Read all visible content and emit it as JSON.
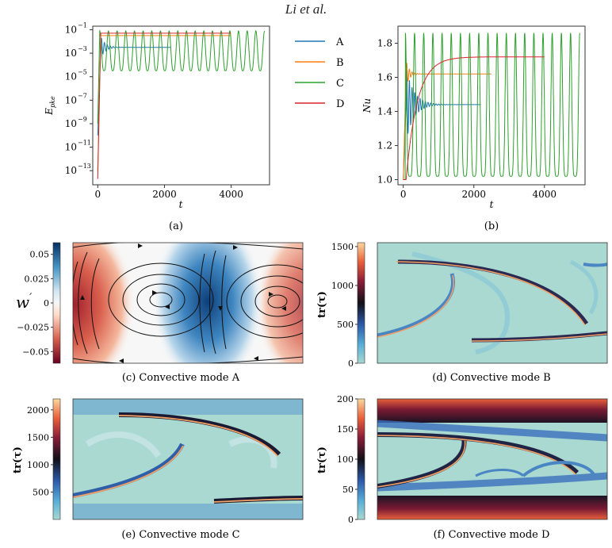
{
  "header": {
    "author_line": "Li et al."
  },
  "colors": {
    "A": "#1f77b4",
    "B": "#ff7f0e",
    "C": "#2ca02c",
    "D": "#d62728"
  },
  "legend": {
    "entries": [
      "A",
      "B",
      "C",
      "D"
    ]
  },
  "panel_captions": {
    "a": "(a)",
    "b": "(b)",
    "c": "(c) Convective mode A",
    "d": "(d) Convective mode B",
    "e": "(e) Convective mode C",
    "f": "(f) Convective mode D"
  },
  "chart_data": [
    {
      "id": "a",
      "type": "line",
      "log_y": true,
      "xlabel": "t",
      "ylabel": "E_pke",
      "xlim": [
        -150,
        5150
      ],
      "ylim_exp": [
        -14.2,
        -0.7
      ],
      "xticks": [
        0,
        2000,
        4000
      ],
      "yticks": [
        {
          "e": -1,
          "label": "10"
        },
        {
          "e": -3,
          "label": "10"
        },
        {
          "e": -5,
          "label": "10"
        },
        {
          "e": -7,
          "label": "10"
        },
        {
          "e": -9,
          "label": "10"
        },
        {
          "e": -11,
          "label": "10"
        },
        {
          "e": -13,
          "label": "10"
        }
      ],
      "ytick_exponents": [
        "−1",
        "−3",
        "−5",
        "−7",
        "−9",
        "−11",
        "−13"
      ],
      "series": [
        {
          "name": "A",
          "end_t": 2200,
          "start_log": -10,
          "sat_log": -2.5,
          "osc": "damped"
        },
        {
          "name": "B",
          "end_t": 4000,
          "start_log": -13,
          "sat_log": -1.5,
          "osc": "none"
        },
        {
          "name": "C",
          "end_t": 5000,
          "start_log": -9,
          "osc": "periodic",
          "high_log": -1.1,
          "low_log": -4.5,
          "period": 260
        },
        {
          "name": "D",
          "end_t": 4000,
          "start_log": -13.7,
          "sat_log": -1.3,
          "osc": "none"
        }
      ]
    },
    {
      "id": "b",
      "type": "line",
      "xlabel": "t",
      "ylabel": "Nu",
      "xlim": [
        -150,
        5150
      ],
      "ylim": [
        0.97,
        1.9
      ],
      "xticks": [
        0,
        2000,
        4000
      ],
      "yticks": [
        1.0,
        1.2,
        1.4,
        1.6,
        1.8
      ],
      "series": [
        {
          "name": "A",
          "end_t": 2200,
          "sat": 1.44,
          "osc": "damped"
        },
        {
          "name": "B",
          "end_t": 2500,
          "sat": 1.62,
          "osc": "damped_small"
        },
        {
          "name": "C",
          "end_t": 5000,
          "osc": "periodic",
          "high": 1.86,
          "low": 1.02,
          "period": 260
        },
        {
          "name": "D",
          "end_t": 4000,
          "sat": 1.72,
          "osc": "none"
        }
      ]
    }
  ],
  "heatmaps": [
    {
      "id": "c",
      "colorbar_label": "w'",
      "ticks": [
        "0.05",
        "0.025",
        "0",
        "−0.025",
        "−0.05"
      ],
      "tick_values": [
        0.05,
        0.025,
        0,
        -0.025,
        -0.05
      ],
      "range": [
        -0.062,
        0.062
      ]
    },
    {
      "id": "d",
      "colorbar_label": "tr(τ)",
      "ticks": [
        "1500",
        "1000",
        "500",
        "0"
      ],
      "tick_values": [
        1500,
        1000,
        500,
        0
      ],
      "range": [
        0,
        1550
      ]
    },
    {
      "id": "e",
      "colorbar_label": "tr(τ)",
      "ticks": [
        "2000",
        "1500",
        "1000",
        "500"
      ],
      "tick_values": [
        2000,
        1500,
        1000,
        500
      ],
      "range": [
        0,
        2200
      ]
    },
    {
      "id": "f",
      "colorbar_label": "tr(τ)",
      "ticks": [
        "200",
        "150",
        "100",
        "50",
        "0"
      ],
      "tick_values": [
        200,
        150,
        100,
        50,
        0
      ],
      "range": [
        0,
        200
      ]
    }
  ]
}
